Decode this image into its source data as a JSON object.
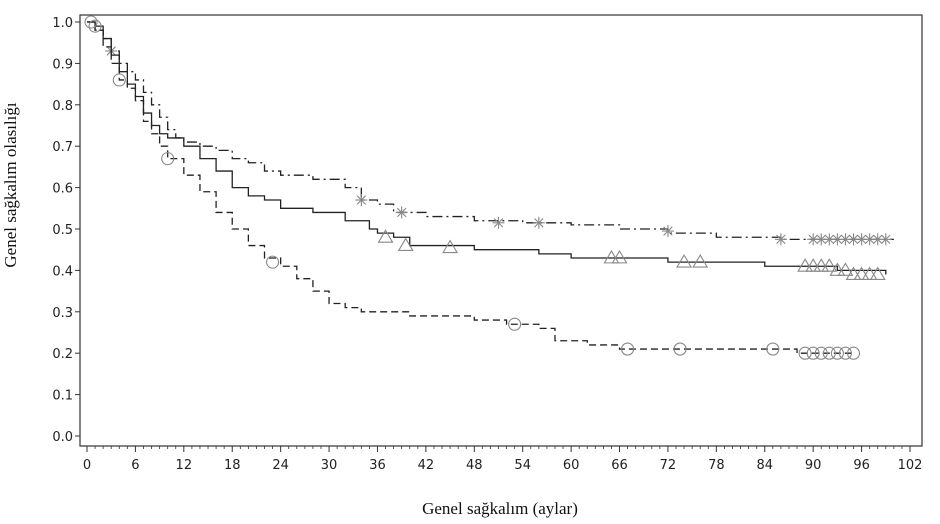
{
  "chart_data": {
    "type": "line",
    "title": "",
    "xlabel": "Genel sağkalım (aylar)",
    "ylabel": "Genel sağkalım olasılığı",
    "xlim": [
      0,
      102
    ],
    "ylim": [
      0,
      1
    ],
    "x_ticks": [
      "0",
      "6",
      "12",
      "18",
      "24",
      "30",
      "36",
      "42",
      "48",
      "54",
      "60",
      "66",
      "72",
      "78",
      "84",
      "90",
      "96",
      "102"
    ],
    "y_ticks": [
      "0.0",
      "0.1",
      "0.2",
      "0.3",
      "0.4",
      "0.5",
      "0.6",
      "0.7",
      "0.8",
      "0.9",
      "1.0"
    ],
    "grid": false,
    "legend": "none",
    "series": [
      {
        "line_style": "dash-dot",
        "marker": "asterisk",
        "points": [
          [
            0,
            1.0
          ],
          [
            1,
            0.98
          ],
          [
            2,
            0.96
          ],
          [
            3,
            0.93
          ],
          [
            4,
            0.9
          ],
          [
            5,
            0.88
          ],
          [
            6,
            0.86
          ],
          [
            7,
            0.83
          ],
          [
            8,
            0.8
          ],
          [
            9,
            0.77
          ],
          [
            10,
            0.74
          ],
          [
            11,
            0.72
          ],
          [
            12,
            0.71
          ],
          [
            14,
            0.7
          ],
          [
            16,
            0.69
          ],
          [
            18,
            0.67
          ],
          [
            20,
            0.66
          ],
          [
            22,
            0.64
          ],
          [
            24,
            0.63
          ],
          [
            28,
            0.62
          ],
          [
            32,
            0.6
          ],
          [
            34,
            0.57
          ],
          [
            36,
            0.56
          ],
          [
            38,
            0.54
          ],
          [
            42,
            0.53
          ],
          [
            48,
            0.52
          ],
          [
            54,
            0.515
          ],
          [
            60,
            0.51
          ],
          [
            66,
            0.5
          ],
          [
            72,
            0.49
          ],
          [
            78,
            0.48
          ],
          [
            86,
            0.475
          ],
          [
            100,
            0.475
          ]
        ],
        "censored": [
          [
            3,
            0.93
          ],
          [
            34,
            0.57
          ],
          [
            39,
            0.54
          ],
          [
            51,
            0.515
          ],
          [
            56,
            0.515
          ],
          [
            72,
            0.495
          ],
          [
            86,
            0.475
          ],
          [
            90,
            0.475
          ],
          [
            91,
            0.475
          ],
          [
            92,
            0.475
          ],
          [
            93,
            0.475
          ],
          [
            94,
            0.475
          ],
          [
            95,
            0.475
          ],
          [
            96,
            0.475
          ],
          [
            97,
            0.475
          ],
          [
            98,
            0.475
          ],
          [
            99,
            0.475
          ]
        ]
      },
      {
        "line_style": "solid",
        "marker": "triangle",
        "points": [
          [
            0,
            1.0
          ],
          [
            1,
            0.99
          ],
          [
            2,
            0.96
          ],
          [
            3,
            0.92
          ],
          [
            4,
            0.88
          ],
          [
            5,
            0.85
          ],
          [
            6,
            0.82
          ],
          [
            7,
            0.78
          ],
          [
            8,
            0.75
          ],
          [
            9,
            0.73
          ],
          [
            10,
            0.72
          ],
          [
            12,
            0.7
          ],
          [
            14,
            0.67
          ],
          [
            16,
            0.64
          ],
          [
            18,
            0.6
          ],
          [
            20,
            0.58
          ],
          [
            22,
            0.57
          ],
          [
            24,
            0.55
          ],
          [
            28,
            0.54
          ],
          [
            32,
            0.52
          ],
          [
            35,
            0.5
          ],
          [
            36,
            0.49
          ],
          [
            38,
            0.48
          ],
          [
            40,
            0.46
          ],
          [
            44,
            0.46
          ],
          [
            48,
            0.45
          ],
          [
            56,
            0.44
          ],
          [
            60,
            0.43
          ],
          [
            66,
            0.43
          ],
          [
            72,
            0.42
          ],
          [
            78,
            0.42
          ],
          [
            84,
            0.41
          ],
          [
            90,
            0.41
          ],
          [
            93,
            0.4
          ],
          [
            99,
            0.39
          ]
        ],
        "censored": [
          [
            37,
            0.48
          ],
          [
            39.5,
            0.46
          ],
          [
            45,
            0.455
          ],
          [
            65,
            0.43
          ],
          [
            66,
            0.43
          ],
          [
            74,
            0.42
          ],
          [
            76,
            0.42
          ],
          [
            89,
            0.41
          ],
          [
            90,
            0.41
          ],
          [
            91,
            0.41
          ],
          [
            92,
            0.41
          ],
          [
            93,
            0.4
          ],
          [
            94,
            0.4
          ],
          [
            95,
            0.39
          ],
          [
            96,
            0.39
          ],
          [
            97,
            0.39
          ],
          [
            98,
            0.39
          ]
        ]
      },
      {
        "line_style": "dash",
        "marker": "circle",
        "points": [
          [
            0,
            1.0
          ],
          [
            1,
            0.98
          ],
          [
            2,
            0.94
          ],
          [
            3,
            0.9
          ],
          [
            4,
            0.86
          ],
          [
            5,
            0.84
          ],
          [
            6,
            0.81
          ],
          [
            7,
            0.76
          ],
          [
            8,
            0.73
          ],
          [
            9,
            0.7
          ],
          [
            10,
            0.67
          ],
          [
            12,
            0.63
          ],
          [
            14,
            0.59
          ],
          [
            16,
            0.54
          ],
          [
            18,
            0.5
          ],
          [
            20,
            0.46
          ],
          [
            22,
            0.43
          ],
          [
            24,
            0.41
          ],
          [
            26,
            0.38
          ],
          [
            28,
            0.35
          ],
          [
            30,
            0.32
          ],
          [
            32,
            0.31
          ],
          [
            34,
            0.3
          ],
          [
            40,
            0.29
          ],
          [
            48,
            0.28
          ],
          [
            52,
            0.27
          ],
          [
            56,
            0.26
          ],
          [
            58,
            0.23
          ],
          [
            62,
            0.22
          ],
          [
            66,
            0.21
          ],
          [
            80,
            0.21
          ],
          [
            88,
            0.2
          ],
          [
            95,
            0.2
          ]
        ],
        "censored": [
          [
            0.5,
            1.0
          ],
          [
            1,
            0.99
          ],
          [
            4,
            0.86
          ],
          [
            10,
            0.67
          ],
          [
            23,
            0.42
          ],
          [
            53,
            0.27
          ],
          [
            67,
            0.21
          ],
          [
            73.5,
            0.21
          ],
          [
            85,
            0.21
          ],
          [
            89,
            0.2
          ],
          [
            90,
            0.2
          ],
          [
            91,
            0.2
          ],
          [
            92,
            0.2
          ],
          [
            93,
            0.2
          ],
          [
            94,
            0.2
          ],
          [
            95,
            0.2
          ]
        ]
      }
    ]
  }
}
